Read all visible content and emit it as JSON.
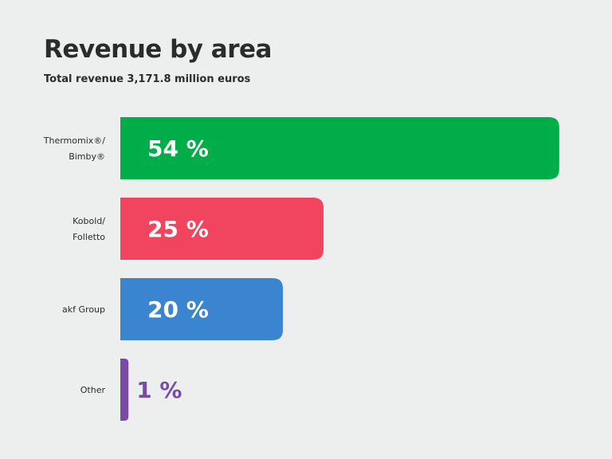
{
  "header": {
    "title": "Revenue by area",
    "subtitle": "Total revenue 3,171.8 million euros"
  },
  "chart_data": {
    "type": "bar",
    "orientation": "horizontal",
    "title": "Revenue by area",
    "subtitle": "Total revenue 3,171.8 million euros",
    "categories": [
      [
        "Thermomix®/",
        "Bimby®"
      ],
      [
        "Kobold/",
        "Folletto"
      ],
      [
        "akf Group"
      ],
      [
        "Other"
      ]
    ],
    "values": [
      54,
      25,
      20,
      1
    ],
    "value_labels": [
      "54 %",
      "25 %",
      "20 %",
      "1 %"
    ],
    "unit": "%",
    "colors": [
      "#00ad48",
      "#f1445f",
      "#3a84d0",
      "#7a4aa8"
    ],
    "xlim": [
      0,
      100
    ],
    "grid": false,
    "legend": "none"
  }
}
